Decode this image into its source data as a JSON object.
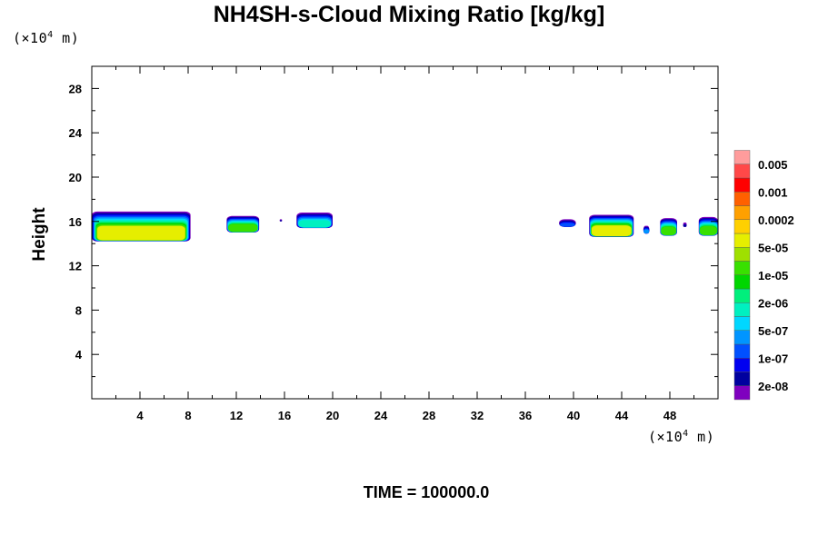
{
  "chart_data": {
    "type": "heatmap",
    "title": "NH4SH-s-Cloud Mixing Ratio [kg/kg]",
    "xlabel": "",
    "ylabel": "Height",
    "x_unit": {
      "prefix": "(×10",
      "exp": "4",
      "suffix": " m)"
    },
    "y_unit": {
      "prefix": "(×10",
      "exp": "4",
      "suffix": " m)"
    },
    "xlim": [
      0,
      52
    ],
    "ylim": [
      0,
      30
    ],
    "x_ticks": [
      4,
      8,
      12,
      16,
      20,
      24,
      28,
      32,
      36,
      40,
      44,
      48
    ],
    "y_ticks": [
      4,
      8,
      12,
      16,
      20,
      24,
      28
    ],
    "x_tick_labels": [
      "4",
      "8",
      "12",
      "16",
      "20",
      "24",
      "28",
      "32",
      "36",
      "40",
      "44",
      "48"
    ],
    "y_tick_labels": [
      "4",
      "8",
      "12",
      "16",
      "20",
      "24",
      "28"
    ],
    "colorbar": {
      "colors": [
        "#7f00bf",
        "#00009f",
        "#0000f0",
        "#0050ff",
        "#0095ff",
        "#00d7ff",
        "#00f0c0",
        "#00ef7c",
        "#00d600",
        "#39e000",
        "#9fe000",
        "#e6ee00",
        "#ffd000",
        "#ffa000",
        "#ff6000",
        "#ff0000",
        "#ff4848",
        "#ff9c9c"
      ],
      "labels": [
        "2e-08",
        "1e-07",
        "5e-07",
        "2e-06",
        "1e-05",
        "5e-05",
        "0.0002",
        "0.001",
        "0.005"
      ]
    },
    "blobs": [
      {
        "x0": 0.0,
        "x1": 8.2,
        "ybot": 14.2,
        "ytop": 16.9,
        "peak": 11
      },
      {
        "x0": 11.2,
        "x1": 13.9,
        "ybot": 15.0,
        "ytop": 16.5,
        "peak": 9
      },
      {
        "x0": 17.0,
        "x1": 20.0,
        "ybot": 15.4,
        "ytop": 16.8,
        "peak": 6
      },
      {
        "x0": 38.8,
        "x1": 40.2,
        "ybot": 15.5,
        "ytop": 16.2,
        "peak": 3
      },
      {
        "x0": 41.3,
        "x1": 45.0,
        "ybot": 14.6,
        "ytop": 16.6,
        "peak": 11
      },
      {
        "x0": 45.8,
        "x1": 46.3,
        "ybot": 14.9,
        "ytop": 15.6,
        "peak": 4
      },
      {
        "x0": 47.2,
        "x1": 48.6,
        "ybot": 14.7,
        "ytop": 16.3,
        "peak": 9
      },
      {
        "x0": 50.4,
        "x1": 52.0,
        "ybot": 14.7,
        "ytop": 16.4,
        "peak": 9
      },
      {
        "x0": 49.1,
        "x1": 49.4,
        "ybot": 15.5,
        "ytop": 15.9,
        "peak": 1
      },
      {
        "x0": 15.6,
        "x1": 15.8,
        "ybot": 16.0,
        "ytop": 16.2,
        "peak": 1
      }
    ]
  },
  "time_label": "TIME = 100000.0"
}
